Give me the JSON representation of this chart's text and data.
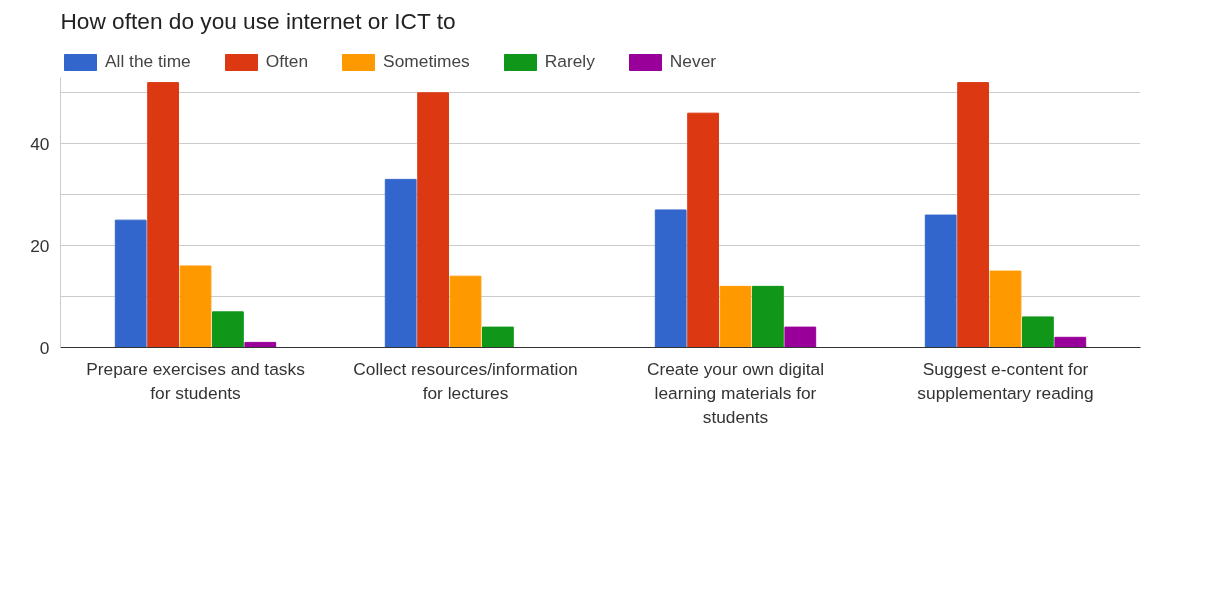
{
  "chart_data": {
    "type": "bar",
    "title": "How often do you use internet or ICT to",
    "categories": [
      "Prepare exercises and tasks\nfor students",
      "Collect resources/information\nfor lectures",
      "Create your own digital\nlearning materials for\nstudents",
      "Suggest e-content for\nsupplementary reading"
    ],
    "series": [
      {
        "name": "All the time",
        "color": "#3366cc",
        "values": [
          25,
          33,
          27,
          26
        ]
      },
      {
        "name": "Often",
        "color": "#dc3912",
        "values": [
          52,
          50,
          46,
          52
        ]
      },
      {
        "name": "Sometimes",
        "color": "#ff9900",
        "values": [
          16,
          14,
          12,
          15
        ]
      },
      {
        "name": "Rarely",
        "color": "#109618",
        "values": [
          7,
          4,
          12,
          6
        ]
      },
      {
        "name": "Never",
        "color": "#990099",
        "values": [
          1,
          0,
          4,
          2
        ]
      }
    ],
    "ylim": [
      0,
      53
    ],
    "yticks": [
      0,
      {
        "value": 10,
        "label": null
      },
      20,
      {
        "value": 30,
        "label": null
      },
      40,
      {
        "value": 50,
        "label": null
      }
    ],
    "grid": "y",
    "legend": "top left"
  }
}
